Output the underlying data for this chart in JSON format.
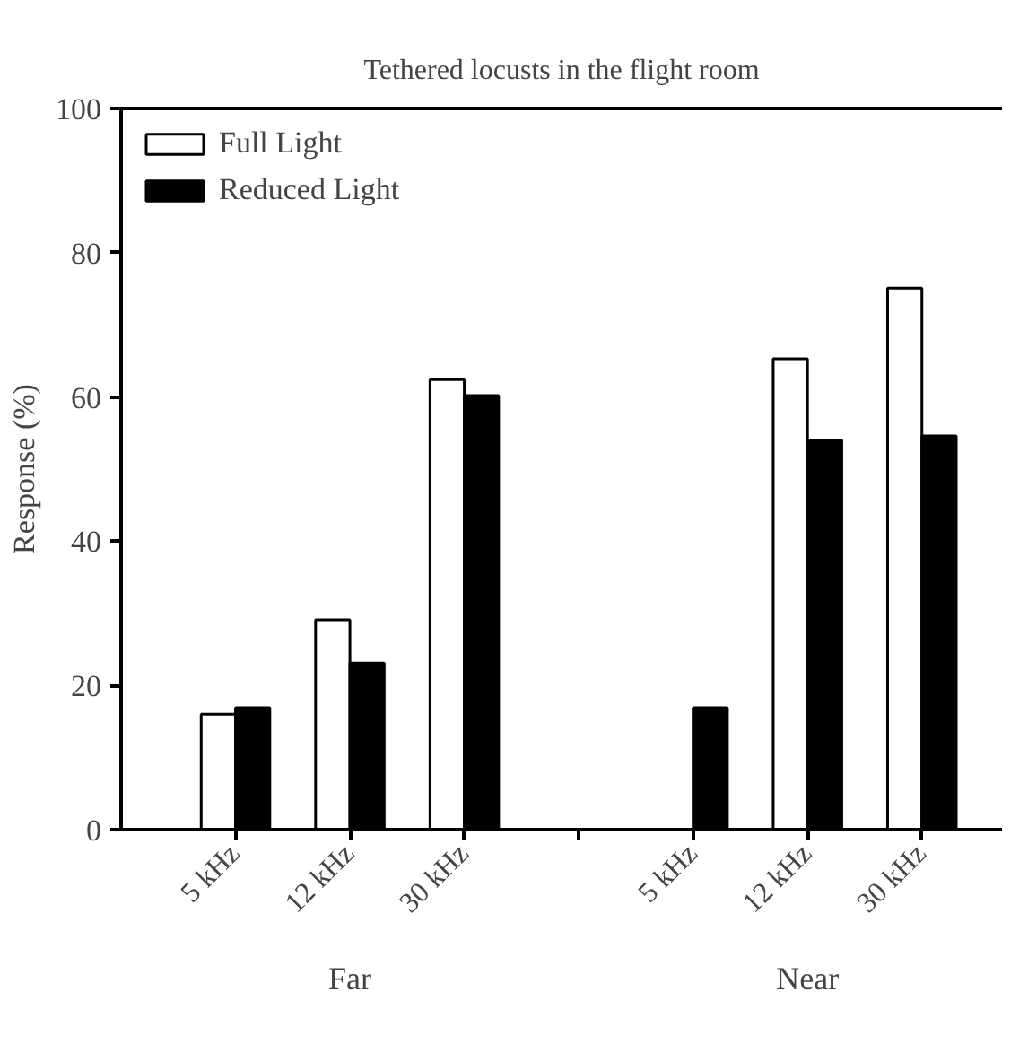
{
  "chart_data": {
    "type": "bar",
    "title": "Tethered locusts in the flight room",
    "ylabel": "Response (%)",
    "categories": [
      "5 kHz",
      "12 kHz",
      "30 kHz",
      null,
      "5 kHz",
      "12 kHz",
      "30 kHz"
    ],
    "series": [
      {
        "name": "Full Light",
        "color": "#ffffff",
        "values": [
          16.0,
          29.1,
          62.4,
          null,
          null,
          65.3,
          75.1
        ]
      },
      {
        "name": "Reduced Light",
        "color": "#000000",
        "values": [
          16.9,
          23.1,
          60.2,
          null,
          16.9,
          54.0,
          54.6
        ]
      }
    ],
    "annotations": [
      "Far",
      "Near"
    ],
    "ylim": [
      0,
      100
    ],
    "yticks": [
      0,
      20,
      40,
      60,
      80,
      100
    ],
    "grid": false,
    "legend": "top left"
  }
}
